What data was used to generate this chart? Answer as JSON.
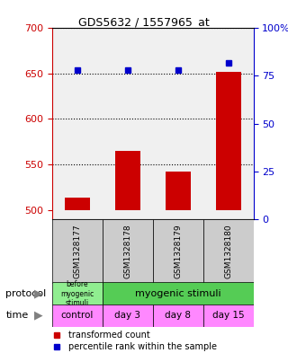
{
  "title": "GDS5632 / 1557965_at",
  "samples": [
    "GSM1328177",
    "GSM1328178",
    "GSM1328179",
    "GSM1328180"
  ],
  "bar_values": [
    513,
    565,
    542,
    652
  ],
  "bar_base": 500,
  "percentile_values": [
    78,
    78,
    78,
    82
  ],
  "ylim_left": [
    490,
    700
  ],
  "ylim_right": [
    0,
    100
  ],
  "yticks_left": [
    500,
    550,
    600,
    650,
    700
  ],
  "yticks_right": [
    0,
    25,
    50,
    75,
    100
  ],
  "ytick_labels_right": [
    "0",
    "25",
    "50",
    "75",
    "100%"
  ],
  "bar_color": "#cc0000",
  "dot_color": "#0000cc",
  "grid_color": "#000000",
  "bg_color": "#ffffff",
  "plot_bg": "#ffffff",
  "protocol_labels": [
    "before\nmyogenic\nstimuli",
    "myogenic stimuli"
  ],
  "protocol_colors": [
    "#90ee90",
    "#66dd66"
  ],
  "time_labels": [
    "control",
    "day 3",
    "day 8",
    "day 15"
  ],
  "time_color": "#ff88ff",
  "sample_box_color": "#cccccc",
  "left_axis_color": "#cc0000",
  "right_axis_color": "#0000cc"
}
